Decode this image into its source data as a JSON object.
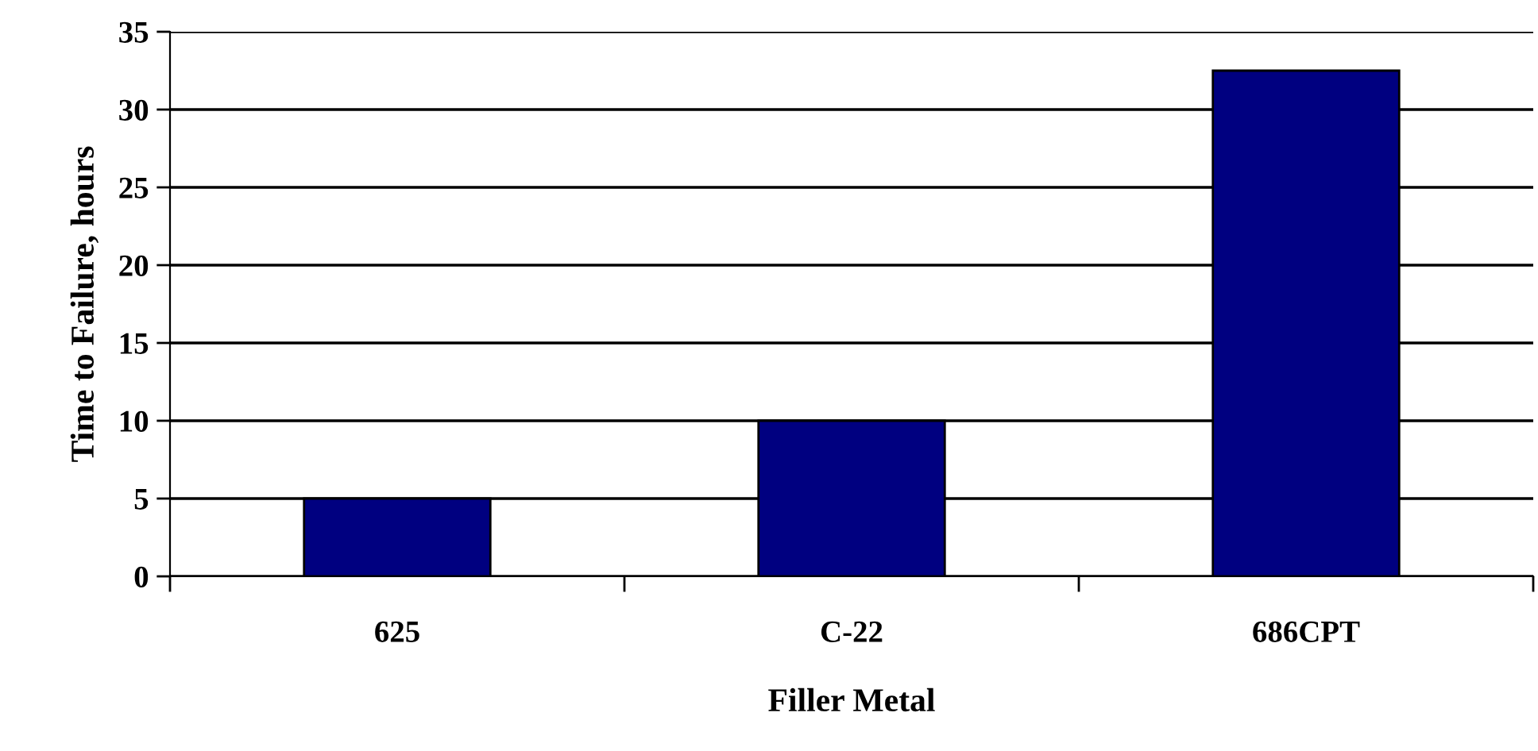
{
  "chart_data": {
    "type": "bar",
    "xlabel": "Filler Metal",
    "ylabel": "Time to Failure, hours",
    "categories": [
      "625",
      "C-22",
      "686CPT"
    ],
    "series": [
      {
        "color": "#000080",
        "values": [
          5,
          10,
          32.5
        ]
      }
    ],
    "ylim": [
      0,
      35
    ],
    "yticks": [
      0,
      5,
      10,
      15,
      20,
      25,
      30,
      35
    ],
    "grid": "y",
    "legend": false
  }
}
